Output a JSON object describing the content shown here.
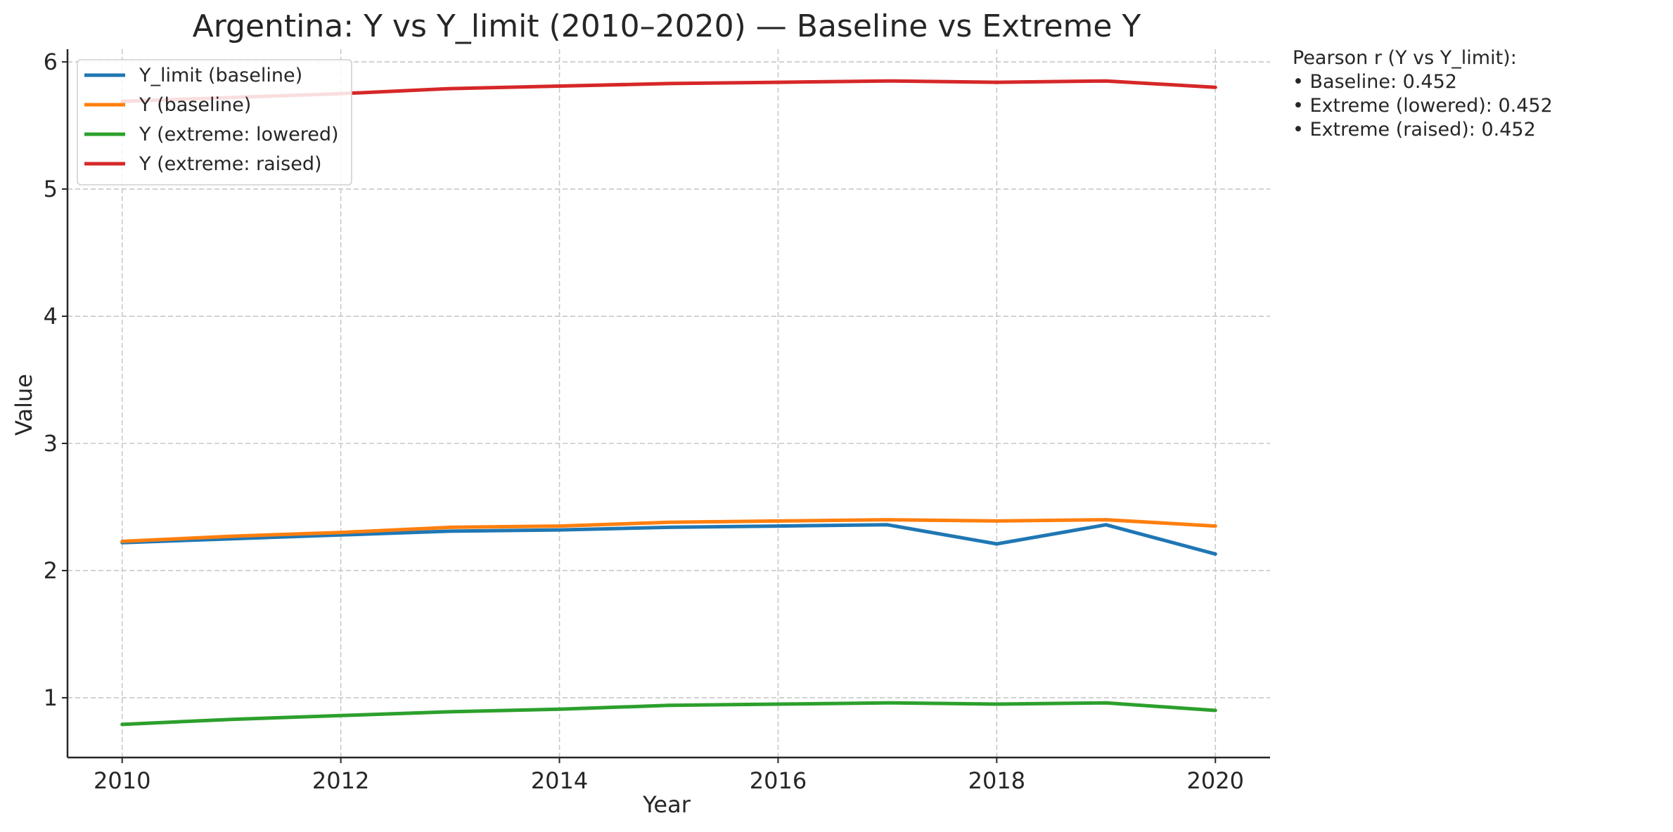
{
  "chart_data": {
    "type": "line",
    "title": "Argentina: Y vs Y_limit (2010–2020) — Baseline vs Extreme Y",
    "xlabel": "Year",
    "ylabel": "Value",
    "x": [
      2010,
      2011,
      2012,
      2013,
      2014,
      2015,
      2016,
      2017,
      2018,
      2019,
      2020
    ],
    "xlim": [
      2009.5,
      2020.5
    ],
    "ylim": [
      0.53,
      6.1
    ],
    "xticks": [
      2010,
      2012,
      2014,
      2016,
      2018,
      2020
    ],
    "xtick_labels": [
      "2010",
      "2012",
      "2014",
      "2016",
      "2018",
      "2020"
    ],
    "yticks": [
      1,
      2,
      3,
      4,
      5,
      6
    ],
    "ytick_labels": [
      "1",
      "2",
      "3",
      "4",
      "5",
      "6"
    ],
    "grid": true,
    "legend_position": "top-left",
    "series": [
      {
        "name": "Y_limit (baseline)",
        "color": "#1f77b4",
        "values": [
          2.22,
          2.25,
          2.28,
          2.31,
          2.32,
          2.34,
          2.35,
          2.36,
          2.21,
          2.36,
          2.13
        ]
      },
      {
        "name": "Y (baseline)",
        "color": "#ff7f0e",
        "values": [
          2.23,
          2.27,
          2.3,
          2.34,
          2.35,
          2.38,
          2.39,
          2.4,
          2.39,
          2.4,
          2.35
        ]
      },
      {
        "name": "Y (extreme: lowered)",
        "color": "#2ca02c",
        "values": [
          0.79,
          0.83,
          0.86,
          0.89,
          0.91,
          0.94,
          0.95,
          0.96,
          0.95,
          0.96,
          0.9
        ]
      },
      {
        "name": "Y (extreme: raised)",
        "color": "#d62728",
        "values": [
          5.69,
          5.72,
          5.75,
          5.79,
          5.81,
          5.83,
          5.84,
          5.85,
          5.84,
          5.85,
          5.8
        ]
      }
    ]
  },
  "annotation": {
    "heading": "Pearson r (Y vs Y_limit):",
    "lines": [
      "• Baseline: 0.452",
      "• Extreme (lowered): 0.452",
      "• Extreme (raised): 0.452"
    ]
  }
}
